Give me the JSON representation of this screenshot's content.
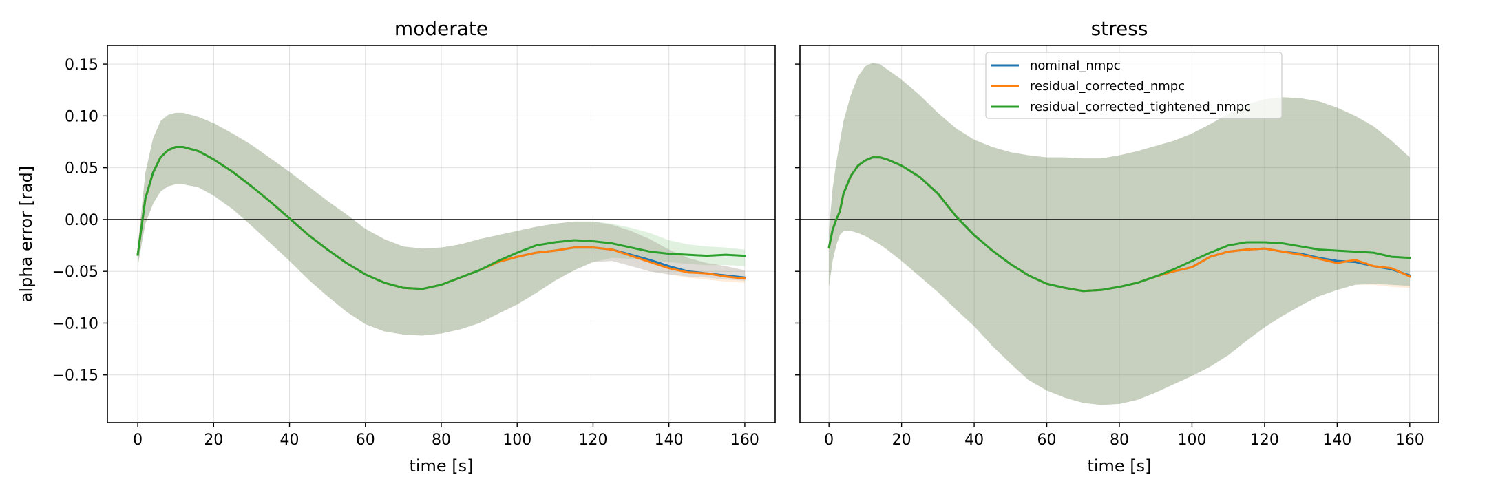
{
  "chart_data": [
    {
      "type": "line",
      "title": "moderate",
      "xlabel": "time [s]",
      "ylabel": "alpha error [rad]",
      "xlim": [
        -8,
        168
      ],
      "ylim": [
        -0.196,
        0.168
      ],
      "xticks": [
        0,
        20,
        40,
        60,
        80,
        100,
        120,
        140,
        160
      ],
      "yticks": [
        0.15,
        0.1,
        0.05,
        0.0,
        -0.05,
        -0.1,
        -0.15
      ],
      "ytick_labels": [
        "0.15",
        "0.10",
        "0.05",
        "0.00",
        "−0.05",
        "−0.10",
        "−0.15"
      ],
      "grid": true,
      "zero_line": true,
      "legend": null,
      "series": [
        {
          "name": "nominal_nmpc",
          "color": "#1f77b4",
          "x": [
            0,
            2,
            4,
            6,
            8,
            10,
            12,
            16,
            20,
            25,
            30,
            35,
            40,
            45,
            50,
            55,
            60,
            65,
            70,
            75,
            80,
            85,
            90,
            95,
            100,
            105,
            110,
            115,
            120,
            125,
            130,
            135,
            140,
            145,
            150,
            155,
            160
          ],
          "y": [
            -0.034,
            0.02,
            0.045,
            0.06,
            0.067,
            0.07,
            0.07,
            0.066,
            0.058,
            0.046,
            0.032,
            0.017,
            0.001,
            -0.015,
            -0.029,
            -0.042,
            -0.053,
            -0.061,
            -0.066,
            -0.067,
            -0.063,
            -0.056,
            -0.049,
            -0.041,
            -0.036,
            -0.032,
            -0.03,
            -0.027,
            -0.027,
            -0.029,
            -0.034,
            -0.039,
            -0.045,
            -0.05,
            -0.052,
            -0.054,
            -0.056
          ],
          "band_upper": [
            -0.026,
            0.045,
            0.078,
            0.095,
            0.101,
            0.103,
            0.103,
            0.099,
            0.093,
            0.083,
            0.072,
            0.059,
            0.046,
            0.032,
            0.018,
            0.005,
            -0.009,
            -0.019,
            -0.026,
            -0.028,
            -0.027,
            -0.024,
            -0.019,
            -0.015,
            -0.011,
            -0.007,
            -0.004,
            -0.002,
            -0.002,
            -0.005,
            -0.011,
            -0.019,
            -0.029,
            -0.037,
            -0.042,
            -0.045,
            -0.049
          ],
          "band_lower": [
            -0.045,
            -0.004,
            0.015,
            0.027,
            0.032,
            0.034,
            0.034,
            0.031,
            0.023,
            0.01,
            -0.006,
            -0.023,
            -0.04,
            -0.058,
            -0.074,
            -0.089,
            -0.101,
            -0.108,
            -0.111,
            -0.112,
            -0.11,
            -0.106,
            -0.1,
            -0.091,
            -0.082,
            -0.071,
            -0.059,
            -0.049,
            -0.041,
            -0.04,
            -0.045,
            -0.05,
            -0.053,
            -0.055,
            -0.056,
            -0.058,
            -0.059
          ]
        },
        {
          "name": "residual_corrected_nmpc",
          "color": "#ff7f0e",
          "x": [
            0,
            2,
            4,
            6,
            8,
            10,
            12,
            16,
            20,
            25,
            30,
            35,
            40,
            45,
            50,
            55,
            60,
            65,
            70,
            75,
            80,
            85,
            90,
            95,
            100,
            105,
            110,
            115,
            120,
            125,
            130,
            135,
            140,
            145,
            150,
            155,
            160
          ],
          "y": [
            -0.034,
            0.02,
            0.045,
            0.06,
            0.067,
            0.07,
            0.07,
            0.066,
            0.058,
            0.046,
            0.032,
            0.017,
            0.001,
            -0.015,
            -0.029,
            -0.042,
            -0.053,
            -0.061,
            -0.066,
            -0.067,
            -0.063,
            -0.056,
            -0.049,
            -0.041,
            -0.036,
            -0.032,
            -0.03,
            -0.027,
            -0.027,
            -0.029,
            -0.035,
            -0.041,
            -0.047,
            -0.051,
            -0.052,
            -0.055,
            -0.057
          ],
          "band_upper": [
            -0.026,
            0.045,
            0.078,
            0.095,
            0.101,
            0.103,
            0.103,
            0.099,
            0.093,
            0.083,
            0.072,
            0.059,
            0.046,
            0.032,
            0.018,
            0.005,
            -0.009,
            -0.019,
            -0.026,
            -0.028,
            -0.027,
            -0.024,
            -0.019,
            -0.015,
            -0.011,
            -0.007,
            -0.004,
            -0.002,
            -0.002,
            -0.005,
            -0.011,
            -0.019,
            -0.029,
            -0.037,
            -0.042,
            -0.045,
            -0.049
          ],
          "band_lower": [
            -0.045,
            -0.004,
            0.015,
            0.027,
            0.032,
            0.034,
            0.034,
            0.031,
            0.023,
            0.01,
            -0.006,
            -0.023,
            -0.04,
            -0.058,
            -0.074,
            -0.089,
            -0.101,
            -0.108,
            -0.111,
            -0.112,
            -0.11,
            -0.106,
            -0.1,
            -0.091,
            -0.082,
            -0.071,
            -0.059,
            -0.049,
            -0.041,
            -0.04,
            -0.045,
            -0.05,
            -0.053,
            -0.056,
            -0.058,
            -0.06,
            -0.061
          ]
        },
        {
          "name": "residual_corrected_tightened_nmpc",
          "color": "#2ca02c",
          "x": [
            0,
            2,
            4,
            6,
            8,
            10,
            12,
            16,
            20,
            25,
            30,
            35,
            40,
            45,
            50,
            55,
            60,
            65,
            70,
            75,
            80,
            85,
            90,
            95,
            100,
            105,
            110,
            115,
            120,
            125,
            130,
            135,
            140,
            145,
            150,
            155,
            160
          ],
          "y": [
            -0.034,
            0.02,
            0.045,
            0.06,
            0.067,
            0.07,
            0.07,
            0.066,
            0.058,
            0.046,
            0.032,
            0.017,
            0.001,
            -0.015,
            -0.029,
            -0.042,
            -0.053,
            -0.061,
            -0.066,
            -0.067,
            -0.063,
            -0.056,
            -0.049,
            -0.04,
            -0.032,
            -0.025,
            -0.022,
            -0.02,
            -0.021,
            -0.023,
            -0.027,
            -0.031,
            -0.033,
            -0.034,
            -0.035,
            -0.034,
            -0.035
          ],
          "band_upper": [
            -0.026,
            0.045,
            0.078,
            0.095,
            0.101,
            0.103,
            0.103,
            0.099,
            0.093,
            0.083,
            0.072,
            0.059,
            0.046,
            0.032,
            0.018,
            0.005,
            -0.009,
            -0.019,
            -0.026,
            -0.028,
            -0.027,
            -0.024,
            -0.019,
            -0.015,
            -0.011,
            -0.007,
            -0.004,
            -0.002,
            -0.002,
            -0.004,
            -0.008,
            -0.013,
            -0.02,
            -0.024,
            -0.026,
            -0.027,
            -0.029
          ],
          "band_lower": [
            -0.045,
            -0.004,
            0.015,
            0.027,
            0.032,
            0.034,
            0.034,
            0.031,
            0.023,
            0.01,
            -0.006,
            -0.023,
            -0.04,
            -0.058,
            -0.074,
            -0.089,
            -0.101,
            -0.108,
            -0.111,
            -0.112,
            -0.11,
            -0.106,
            -0.1,
            -0.091,
            -0.082,
            -0.071,
            -0.059,
            -0.049,
            -0.041,
            -0.037,
            -0.038,
            -0.04,
            -0.041,
            -0.043,
            -0.044,
            -0.044,
            -0.045
          ]
        }
      ]
    },
    {
      "type": "line",
      "title": "stress",
      "xlabel": "time [s]",
      "ylabel": "",
      "xlim": [
        -8,
        168
      ],
      "ylim": [
        -0.196,
        0.168
      ],
      "xticks": [
        0,
        20,
        40,
        60,
        80,
        100,
        120,
        140,
        160
      ],
      "yticks": [
        0.15,
        0.1,
        0.05,
        0.0,
        -0.05,
        -0.1,
        -0.15
      ],
      "ytick_labels": [],
      "grid": true,
      "zero_line": true,
      "legend": "upper center",
      "series": [
        {
          "name": "nominal_nmpc",
          "color": "#1f77b4",
          "x": [
            0,
            1,
            2,
            3,
            4,
            6,
            8,
            10,
            12,
            14,
            16,
            20,
            25,
            30,
            35,
            40,
            45,
            50,
            55,
            60,
            65,
            70,
            75,
            80,
            85,
            90,
            95,
            100,
            105,
            110,
            115,
            120,
            125,
            130,
            135,
            140,
            145,
            150,
            155,
            160
          ],
          "y": [
            -0.027,
            -0.01,
            0.0,
            0.008,
            0.025,
            0.042,
            0.052,
            0.057,
            0.06,
            0.06,
            0.058,
            0.052,
            0.041,
            0.025,
            0.003,
            -0.015,
            -0.03,
            -0.043,
            -0.054,
            -0.062,
            -0.066,
            -0.069,
            -0.068,
            -0.065,
            -0.061,
            -0.055,
            -0.05,
            -0.046,
            -0.036,
            -0.031,
            -0.029,
            -0.028,
            -0.031,
            -0.033,
            -0.037,
            -0.04,
            -0.041,
            -0.045,
            -0.048,
            -0.054
          ],
          "band_upper": [
            -0.01,
            0.03,
            0.055,
            0.075,
            0.095,
            0.12,
            0.138,
            0.148,
            0.151,
            0.15,
            0.145,
            0.135,
            0.12,
            0.103,
            0.088,
            0.077,
            0.07,
            0.065,
            0.062,
            0.06,
            0.06,
            0.059,
            0.059,
            0.062,
            0.066,
            0.071,
            0.076,
            0.083,
            0.092,
            0.102,
            0.111,
            0.116,
            0.118,
            0.117,
            0.114,
            0.108,
            0.1,
            0.09,
            0.076,
            0.06
          ],
          "band_lower": [
            -0.065,
            -0.04,
            -0.025,
            -0.015,
            -0.011,
            -0.011,
            -0.013,
            -0.016,
            -0.02,
            -0.024,
            -0.029,
            -0.04,
            -0.055,
            -0.07,
            -0.087,
            -0.103,
            -0.122,
            -0.139,
            -0.155,
            -0.165,
            -0.172,
            -0.177,
            -0.179,
            -0.178,
            -0.174,
            -0.167,
            -0.159,
            -0.151,
            -0.142,
            -0.131,
            -0.117,
            -0.104,
            -0.093,
            -0.083,
            -0.074,
            -0.068,
            -0.063,
            -0.062,
            -0.063,
            -0.064
          ]
        },
        {
          "name": "residual_corrected_nmpc",
          "color": "#ff7f0e",
          "x": [
            0,
            1,
            2,
            3,
            4,
            6,
            8,
            10,
            12,
            14,
            16,
            20,
            25,
            30,
            35,
            40,
            45,
            50,
            55,
            60,
            65,
            70,
            75,
            80,
            85,
            90,
            95,
            100,
            105,
            110,
            115,
            120,
            125,
            130,
            135,
            140,
            145,
            150,
            155,
            160
          ],
          "y": [
            -0.027,
            -0.01,
            0.0,
            0.008,
            0.025,
            0.042,
            0.052,
            0.057,
            0.06,
            0.06,
            0.058,
            0.052,
            0.041,
            0.025,
            0.003,
            -0.015,
            -0.03,
            -0.043,
            -0.054,
            -0.062,
            -0.066,
            -0.069,
            -0.068,
            -0.065,
            -0.061,
            -0.055,
            -0.05,
            -0.046,
            -0.036,
            -0.031,
            -0.029,
            -0.028,
            -0.031,
            -0.034,
            -0.038,
            -0.042,
            -0.039,
            -0.045,
            -0.047,
            -0.055
          ],
          "band_upper": [
            -0.01,
            0.03,
            0.055,
            0.075,
            0.095,
            0.12,
            0.138,
            0.148,
            0.151,
            0.15,
            0.145,
            0.135,
            0.12,
            0.103,
            0.088,
            0.077,
            0.07,
            0.065,
            0.062,
            0.06,
            0.06,
            0.059,
            0.059,
            0.062,
            0.066,
            0.071,
            0.076,
            0.083,
            0.092,
            0.102,
            0.111,
            0.116,
            0.118,
            0.117,
            0.114,
            0.108,
            0.1,
            0.09,
            0.076,
            0.06
          ],
          "band_lower": [
            -0.065,
            -0.04,
            -0.025,
            -0.015,
            -0.011,
            -0.011,
            -0.013,
            -0.016,
            -0.02,
            -0.024,
            -0.029,
            -0.04,
            -0.055,
            -0.07,
            -0.087,
            -0.103,
            -0.122,
            -0.139,
            -0.155,
            -0.165,
            -0.172,
            -0.177,
            -0.179,
            -0.178,
            -0.174,
            -0.167,
            -0.159,
            -0.151,
            -0.142,
            -0.131,
            -0.117,
            -0.104,
            -0.093,
            -0.083,
            -0.074,
            -0.068,
            -0.063,
            -0.063,
            -0.065,
            -0.066
          ]
        },
        {
          "name": "residual_corrected_tightened_nmpc",
          "color": "#2ca02c",
          "x": [
            0,
            1,
            2,
            3,
            4,
            6,
            8,
            10,
            12,
            14,
            16,
            20,
            25,
            30,
            35,
            40,
            45,
            50,
            55,
            60,
            65,
            70,
            75,
            80,
            85,
            90,
            95,
            100,
            105,
            110,
            115,
            120,
            125,
            130,
            135,
            140,
            145,
            150,
            155,
            160
          ],
          "y": [
            -0.027,
            -0.01,
            0.0,
            0.008,
            0.025,
            0.042,
            0.052,
            0.057,
            0.06,
            0.06,
            0.058,
            0.052,
            0.041,
            0.025,
            0.003,
            -0.015,
            -0.03,
            -0.043,
            -0.054,
            -0.062,
            -0.066,
            -0.069,
            -0.068,
            -0.065,
            -0.061,
            -0.055,
            -0.048,
            -0.04,
            -0.032,
            -0.025,
            -0.022,
            -0.022,
            -0.023,
            -0.026,
            -0.029,
            -0.03,
            -0.031,
            -0.032,
            -0.036,
            -0.037
          ],
          "band_upper": [
            -0.01,
            0.03,
            0.055,
            0.075,
            0.095,
            0.12,
            0.138,
            0.148,
            0.151,
            0.15,
            0.145,
            0.135,
            0.12,
            0.103,
            0.088,
            0.077,
            0.07,
            0.065,
            0.062,
            0.06,
            0.06,
            0.059,
            0.059,
            0.062,
            0.066,
            0.071,
            0.076,
            0.083,
            0.092,
            0.102,
            0.111,
            0.116,
            0.118,
            0.117,
            0.114,
            0.108,
            0.1,
            0.09,
            0.076,
            0.06
          ],
          "band_lower": [
            -0.065,
            -0.04,
            -0.025,
            -0.015,
            -0.011,
            -0.011,
            -0.013,
            -0.016,
            -0.02,
            -0.024,
            -0.029,
            -0.04,
            -0.055,
            -0.07,
            -0.087,
            -0.103,
            -0.122,
            -0.139,
            -0.155,
            -0.165,
            -0.172,
            -0.177,
            -0.179,
            -0.178,
            -0.174,
            -0.167,
            -0.159,
            -0.151,
            -0.142,
            -0.131,
            -0.117,
            -0.104,
            -0.093,
            -0.083,
            -0.074,
            -0.068,
            -0.063,
            -0.062,
            -0.063,
            -0.064
          ]
        }
      ]
    }
  ]
}
